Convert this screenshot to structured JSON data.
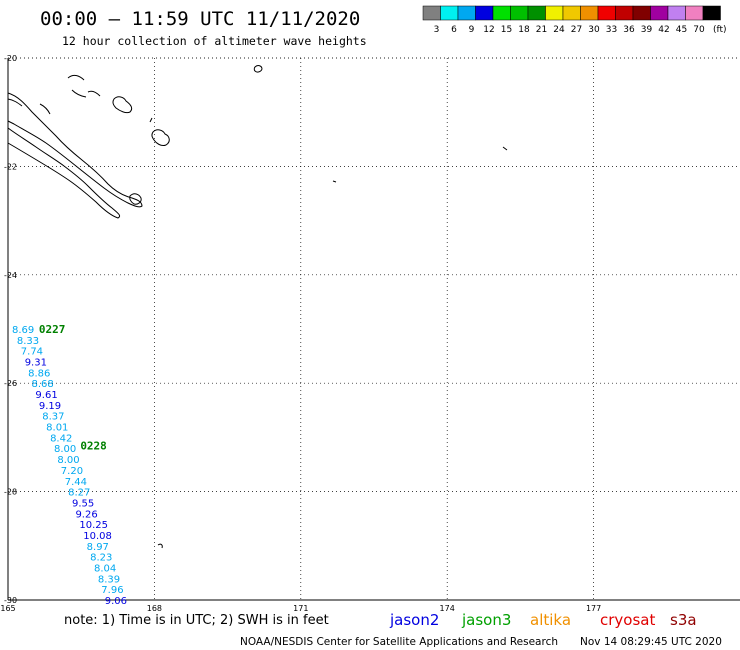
{
  "header": {
    "title": "00:00 – 11:59 UTC 11/11/2020",
    "subtitle": "12 hour collection of altimeter wave heights"
  },
  "colorbar": {
    "unit": "(ft)",
    "bins": [
      {
        "label": "3",
        "color": "#808080"
      },
      {
        "label": "6",
        "color": "#00f0f0"
      },
      {
        "label": "9",
        "color": "#00a8f0"
      },
      {
        "label": "12",
        "color": "#0000e0"
      },
      {
        "label": "15",
        "color": "#00e000"
      },
      {
        "label": "18",
        "color": "#00c000"
      },
      {
        "label": "21",
        "color": "#009000"
      },
      {
        "label": "24",
        "color": "#f0f000"
      },
      {
        "label": "27",
        "color": "#f0c800"
      },
      {
        "label": "30",
        "color": "#f09000"
      },
      {
        "label": "33",
        "color": "#f00000"
      },
      {
        "label": "36",
        "color": "#c00000"
      },
      {
        "label": "39",
        "color": "#800000"
      },
      {
        "label": "42",
        "color": "#a000a0"
      },
      {
        "label": "45",
        "color": "#c080f0"
      },
      {
        "label": "70",
        "color": "#f080c0"
      },
      {
        "label": "",
        "color": "#000000"
      }
    ]
  },
  "map": {
    "lat_ticks": [
      "-20",
      "-22",
      "-24",
      "-26",
      "-28",
      "-30"
    ],
    "lon_ticks": [
      "165",
      "168",
      "171",
      "174",
      "177"
    ],
    "lon_range": [
      165,
      180
    ],
    "lat_range": [
      -20,
      -30
    ]
  },
  "track": {
    "passes": [
      {
        "label": "0227",
        "lat": -25.0,
        "lon": 165.55,
        "color": "#008000"
      },
      {
        "label": "0228",
        "lat": -27.15,
        "lon": 166.4,
        "color": "#008000"
      }
    ],
    "points": [
      {
        "v": "8.69",
        "lat": -25.0,
        "lon": 165.0,
        "c": "#00a8f0"
      },
      {
        "v": "8.33",
        "lat": -25.2,
        "lon": 165.1,
        "c": "#00a8f0"
      },
      {
        "v": "7.74",
        "lat": -25.4,
        "lon": 165.18,
        "c": "#00a8f0"
      },
      {
        "v": "9.31",
        "lat": -25.6,
        "lon": 165.26,
        "c": "#0000e0"
      },
      {
        "v": "8.86",
        "lat": -25.8,
        "lon": 165.33,
        "c": "#00a8f0"
      },
      {
        "v": "8.68",
        "lat": -26.0,
        "lon": 165.4,
        "c": "#00a8f0"
      },
      {
        "v": "9.61",
        "lat": -26.2,
        "lon": 165.48,
        "c": "#0000e0"
      },
      {
        "v": "9.19",
        "lat": -26.4,
        "lon": 165.55,
        "c": "#0000e0"
      },
      {
        "v": "8.37",
        "lat": -26.6,
        "lon": 165.62,
        "c": "#00a8f0"
      },
      {
        "v": "8.01",
        "lat": -26.8,
        "lon": 165.7,
        "c": "#00a8f0"
      },
      {
        "v": "8.42",
        "lat": -27.0,
        "lon": 165.78,
        "c": "#00a8f0"
      },
      {
        "v": "8.00",
        "lat": -27.2,
        "lon": 165.86,
        "c": "#00a8f0"
      },
      {
        "v": "8.00",
        "lat": -27.4,
        "lon": 165.93,
        "c": "#00a8f0"
      },
      {
        "v": "7.20",
        "lat": -27.6,
        "lon": 166.0,
        "c": "#00a8f0"
      },
      {
        "v": "7.44",
        "lat": -27.8,
        "lon": 166.08,
        "c": "#00a8f0"
      },
      {
        "v": "8.27",
        "lat": -28.0,
        "lon": 166.15,
        "c": "#00a8f0"
      },
      {
        "v": "9.55",
        "lat": -28.2,
        "lon": 166.23,
        "c": "#0000e0"
      },
      {
        "v": "9.26",
        "lat": -28.4,
        "lon": 166.3,
        "c": "#0000e0"
      },
      {
        "v": "10.25",
        "lat": -28.6,
        "lon": 166.38,
        "c": "#0000e0"
      },
      {
        "v": "10.08",
        "lat": -28.8,
        "lon": 166.46,
        "c": "#0000e0"
      },
      {
        "v": "8.97",
        "lat": -29.0,
        "lon": 166.53,
        "c": "#00a8f0"
      },
      {
        "v": "8.23",
        "lat": -29.2,
        "lon": 166.6,
        "c": "#00a8f0"
      },
      {
        "v": "8.04",
        "lat": -29.4,
        "lon": 166.68,
        "c": "#00a8f0"
      },
      {
        "v": "8.39",
        "lat": -29.6,
        "lon": 166.76,
        "c": "#00a8f0"
      },
      {
        "v": "7.96",
        "lat": -29.8,
        "lon": 166.83,
        "c": "#00a8f0"
      },
      {
        "v": "9.06",
        "lat": -30.0,
        "lon": 166.9,
        "c": "#0000e0"
      }
    ]
  },
  "footer": {
    "note": "note: 1) Time is in UTC; 2) SWH is in feet",
    "satellites": [
      {
        "name": "jason2",
        "color": "#0000e0"
      },
      {
        "name": "jason3",
        "color": "#00a000"
      },
      {
        "name": "altika",
        "color": "#f09000"
      },
      {
        "name": "cryosat",
        "color": "#e00000"
      },
      {
        "name": "s3a",
        "color": "#900000"
      }
    ],
    "credit": "NOAA/NESDIS Center for Satellite Applications and Research",
    "timestamp": "Nov 14 08:29:45 UTC 2020"
  }
}
